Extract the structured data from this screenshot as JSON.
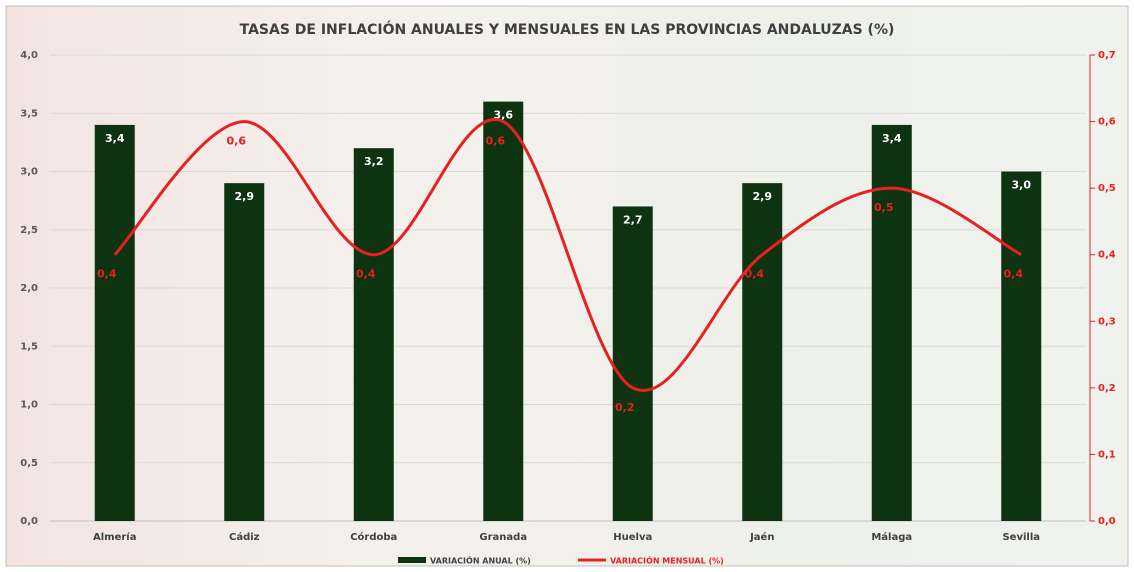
{
  "chart_data": {
    "type": "bar",
    "title": "TASAS DE INFLACIÓN ANUALES Y MENSUALES EN LAS PROVINCIAS ANDALUZAS (%)",
    "categories": [
      "Almería",
      "Cádiz",
      "Córdoba",
      "Granada",
      "Huelva",
      "Jaén",
      "Málaga",
      "Sevilla"
    ],
    "series": [
      {
        "name": "VARIACIÓN ANUAL (%)",
        "type": "bar",
        "color": "#0e3311",
        "values": [
          3.4,
          2.9,
          3.2,
          3.6,
          2.7,
          2.9,
          3.4,
          3.0
        ],
        "value_labels": [
          "3,4",
          "2,9",
          "3,2",
          "3,6",
          "2,7",
          "2,9",
          "3,4",
          "3,0"
        ]
      },
      {
        "name": "VARIACIÓN MENSUAL (%)",
        "type": "line",
        "axis": "y2",
        "color": "#e8201f",
        "values": [
          0.4,
          0.6,
          0.4,
          0.6,
          0.2,
          0.4,
          0.5,
          0.4
        ],
        "value_labels": [
          "0,4",
          "0,6",
          "0,4",
          "0,6",
          "0,2",
          "0,4",
          "0,5",
          "0,4"
        ]
      }
    ],
    "ylim": [
      0,
      4
    ],
    "yticks": [
      {
        "value": 0,
        "label": "0,0"
      },
      {
        "value": 0.5,
        "label": "0,5"
      },
      {
        "value": 1,
        "label": "1,0"
      },
      {
        "value": 1.5,
        "label": "1,5"
      },
      {
        "value": 2,
        "label": "2,0"
      },
      {
        "value": 2.5,
        "label": "2,5"
      },
      {
        "value": 3,
        "label": "3,0"
      },
      {
        "value": 3.5,
        "label": "3,5"
      },
      {
        "value": 4,
        "label": "4,0"
      }
    ],
    "y2lim": [
      0,
      0.7
    ],
    "y2ticks": [
      {
        "value": 0,
        "label": "0,0"
      },
      {
        "value": 0.1,
        "label": "0,1"
      },
      {
        "value": 0.2,
        "label": "0,2"
      },
      {
        "value": 0.3,
        "label": "0,3"
      },
      {
        "value": 0.4,
        "label": "0,4"
      },
      {
        "value": 0.5,
        "label": "0,5"
      },
      {
        "value": 0.6,
        "label": "0,6"
      },
      {
        "value": 0.7,
        "label": "0,7"
      }
    ],
    "grid": true,
    "legend": "bottom"
  }
}
